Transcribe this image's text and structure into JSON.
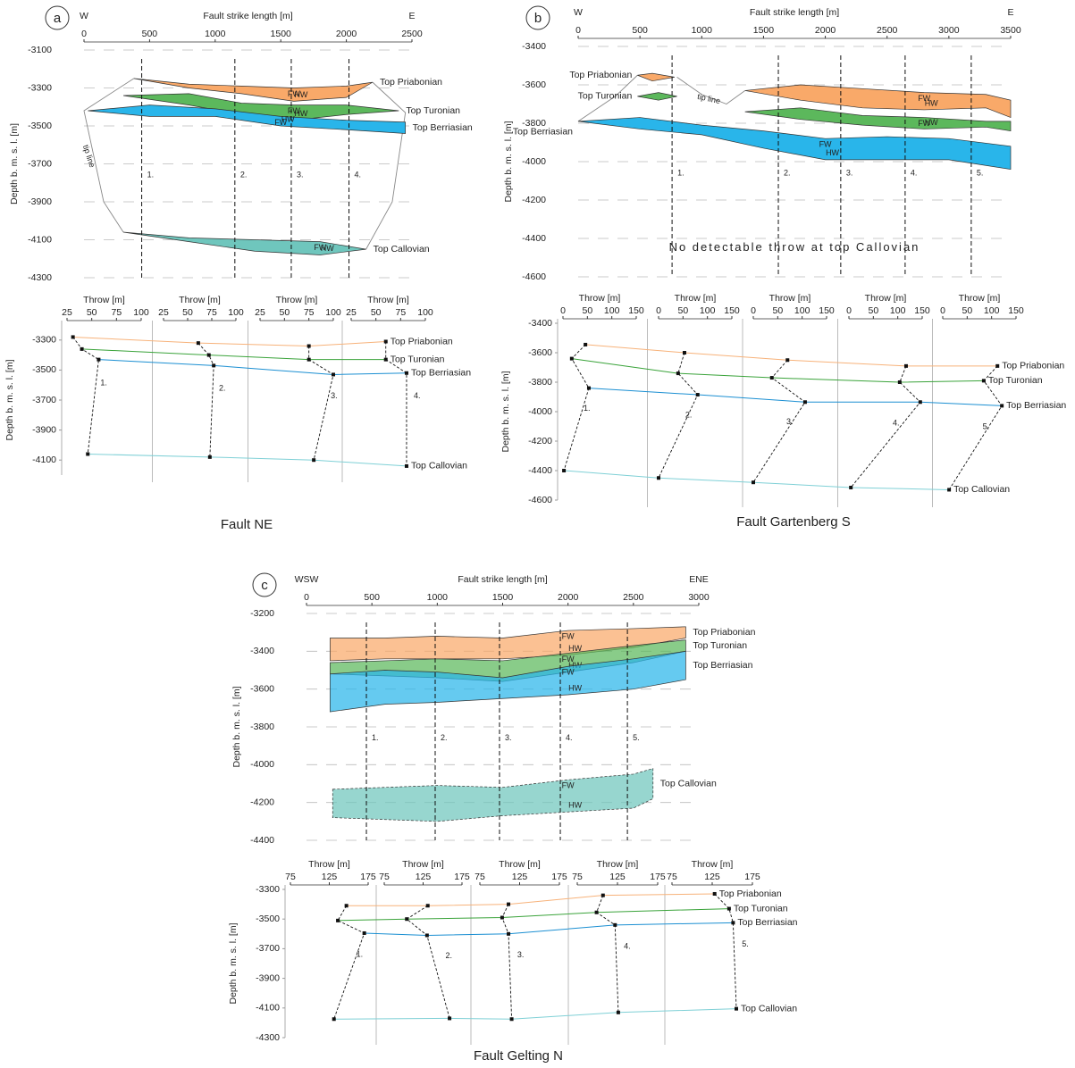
{
  "chart_data": [
    {
      "type": "fault-plane",
      "panel": "a",
      "title": "Fault strike length [m]",
      "ylabel": "Depth b. m. s. l. [m]",
      "left_label": "W",
      "right_label": "E",
      "xlim": [
        0,
        2500
      ],
      "xticks": [
        0,
        500,
        1000,
        1500,
        2000,
        2500
      ],
      "ylim": [
        -3100,
        -4300
      ],
      "yticks": [
        -3100,
        -3300,
        -3500,
        -3700,
        -3900,
        -4100,
        -4300
      ],
      "sections": {
        "x": [
          440,
          1150,
          1580,
          2020
        ],
        "labels": [
          "1.",
          "2.",
          "3.",
          "4."
        ]
      },
      "tip_line": {
        "name": "tip line",
        "x": [
          380,
          0,
          150,
          300,
          null,
          2200,
          2450,
          2350,
          2150
        ],
        "values": [
          -3250,
          -3420,
          -3900,
          -4060,
          null,
          -3270,
          -3430,
          -3900,
          -4150
        ]
      },
      "series": [
        {
          "name": "Top Priabonian",
          "color": "#f9a969",
          "upper_label": "FW",
          "lower_label": "HW",
          "x": [
            380,
            800,
            1200,
            1600,
            2000,
            2200
          ],
          "upper": [
            -3250,
            -3280,
            -3290,
            -3300,
            -3290,
            -3270
          ],
          "lower": [
            -3250,
            -3300,
            -3330,
            -3370,
            -3350,
            -3270
          ]
        },
        {
          "name": "Top Turonian",
          "color": "#5cb85c",
          "upper_label": "FW",
          "lower_label": "HW",
          "x": [
            300,
            800,
            1200,
            1600,
            2000,
            2400
          ],
          "upper": [
            -3340,
            -3330,
            -3380,
            -3390,
            -3390,
            -3420
          ],
          "lower": [
            -3340,
            -3390,
            -3440,
            -3470,
            -3440,
            -3420
          ]
        },
        {
          "name": "Top Berriasian",
          "color": "#29b5ea",
          "upper_label": "FW",
          "lower_label": "HW",
          "x": [
            30,
            500,
            1000,
            1500,
            2000,
            2450
          ],
          "upper": [
            -3420,
            -3390,
            -3410,
            -3450,
            -3470,
            -3480
          ],
          "lower": [
            -3420,
            -3450,
            -3450,
            -3500,
            -3520,
            -3540
          ]
        },
        {
          "name": "Top Callovian",
          "color": "#6fc6bd",
          "upper_label": "FW",
          "lower_label": "HW",
          "x": [
            300,
            800,
            1300,
            1800,
            2150
          ],
          "upper": [
            -4060,
            -4090,
            -4100,
            -4110,
            -4150
          ],
          "lower": [
            -4060,
            -4110,
            -4160,
            -4180,
            -4150
          ]
        }
      ]
    },
    {
      "type": "throw-depth",
      "caption": "Fault NE",
      "xlabel": "Throw [m]",
      "ylabel": "Depth b. m. s. l. [m]",
      "xlim": [
        25,
        100
      ],
      "xticks": [
        25,
        50,
        75,
        100
      ],
      "ylim": [
        -3200,
        -4200
      ],
      "yticks": [
        -3300,
        -3500,
        -3700,
        -3900,
        -4100
      ],
      "sections": [
        "1.",
        "2.",
        "3.",
        "4."
      ],
      "series": [
        {
          "name": "Top Priabonian",
          "color": "#f7b27a",
          "x": [
            31,
            61,
            75,
            60
          ],
          "values": [
            -3280,
            -3320,
            -3340,
            -3310
          ]
        },
        {
          "name": "Top Turonian",
          "color": "#3aa33a",
          "x": [
            40,
            72,
            75,
            60
          ],
          "values": [
            -3360,
            -3400,
            -3430,
            -3430
          ]
        },
        {
          "name": "Top Berriasian",
          "color": "#1b8fd2",
          "x": [
            57,
            77,
            100,
            81
          ],
          "values": [
            -3430,
            -3470,
            -3530,
            -3520
          ]
        },
        {
          "name": "Top Callovian",
          "color": "#7fd0d6",
          "x": [
            46,
            73,
            80,
            81
          ],
          "values": [
            -4060,
            -4080,
            -4100,
            -4140
          ]
        }
      ]
    },
    {
      "type": "fault-plane",
      "panel": "b",
      "title": "Fault strike length [m]",
      "ylabel": "Depth b. m. s. l. [m]",
      "left_label": "W",
      "right_label": "E",
      "xlim": [
        0,
        3500
      ],
      "xticks": [
        0,
        500,
        1000,
        1500,
        2000,
        2500,
        3000,
        3500
      ],
      "ylim": [
        -3400,
        -4600
      ],
      "yticks": [
        -3400,
        -3600,
        -3800,
        -4000,
        -4200,
        -4400,
        -4600
      ],
      "sections": {
        "x": [
          760,
          1620,
          2125,
          2646,
          3181
        ],
        "labels": [
          "1.",
          "2.",
          "3.",
          "4.",
          "5."
        ]
      },
      "tip_line": {
        "name": "tip line",
        "x": [
          1350,
          1200,
          1000,
          800,
          null,
          480,
          300,
          0
        ],
        "values": [
          -3630,
          -3700,
          -3650,
          -3560,
          null,
          -3550,
          -3660,
          -3790
        ]
      },
      "annotation": "No detectable throw at top Callovian",
      "series": [
        {
          "name": "Top Priabonian",
          "color": "#f9a969",
          "upper_label": "FW",
          "lower_label": "HW",
          "x": [
            480,
            600,
            780,
            null,
            1350,
            1800,
            2300,
            2800,
            3300,
            3500
          ],
          "upper": [
            -3550,
            -3540,
            -3560,
            null,
            -3630,
            -3600,
            -3620,
            -3640,
            -3650,
            -3680
          ],
          "lower": [
            -3550,
            -3580,
            -3560,
            null,
            -3630,
            -3680,
            -3720,
            -3730,
            -3720,
            -3770
          ]
        },
        {
          "name": "Top Turonian",
          "color": "#5cb85c",
          "upper_label": "FW",
          "lower_label": "HW",
          "x": [
            480,
            650,
            800,
            null,
            1350,
            1800,
            2300,
            2800,
            3300,
            3500
          ],
          "upper": [
            -3660,
            -3640,
            -3660,
            null,
            -3740,
            -3720,
            -3760,
            -3770,
            -3790,
            -3790
          ],
          "lower": [
            -3660,
            -3680,
            -3660,
            null,
            -3740,
            -3780,
            -3810,
            -3830,
            -3820,
            -3840
          ]
        },
        {
          "name": "Top Berriasian",
          "color": "#29b5ea",
          "upper_label": "FW",
          "lower_label": "HW",
          "x": [
            0,
            500,
            1000,
            1500,
            2000,
            2500,
            3000,
            3500
          ],
          "upper": [
            -3790,
            -3770,
            -3810,
            -3840,
            -3880,
            -3870,
            -3880,
            -3920
          ],
          "lower": [
            -3790,
            -3830,
            -3860,
            -3930,
            -3990,
            -3990,
            -3990,
            -4040
          ]
        }
      ]
    },
    {
      "type": "throw-depth",
      "caption": "Fault Gartenberg S",
      "xlabel": "Throw [m]",
      "ylabel": "Depth b. m. s. l. [m]",
      "xlim": [
        0,
        150
      ],
      "xticks": [
        0,
        50,
        100,
        150
      ],
      "ylim": [
        -3400,
        -4600
      ],
      "yticks": [
        -3400,
        -3600,
        -3800,
        -4000,
        -4200,
        -4400,
        -4600
      ],
      "sections": [
        "1.",
        "2.",
        "3.",
        "4.",
        "5."
      ],
      "series": [
        {
          "name": "Top Priabonian",
          "color": "#f7b27a",
          "x": [
            46,
            53,
            70,
            117,
            112
          ],
          "values": [
            -3545,
            -3600,
            -3650,
            -3690,
            -3690
          ]
        },
        {
          "name": "Top Turonian",
          "color": "#3aa33a",
          "x": [
            18,
            40,
            38,
            104,
            84
          ],
          "values": [
            -3640,
            -3740,
            -3770,
            -3800,
            -3790
          ]
        },
        {
          "name": "Top Berriasian",
          "color": "#1b8fd2",
          "x": [
            53,
            80,
            106,
            146,
            121
          ],
          "values": [
            -3840,
            -3885,
            -3935,
            -3935,
            -3960
          ]
        },
        {
          "name": "Top Callovian",
          "color": "#7fd0d6",
          "x": [
            2,
            0,
            0,
            4,
            13
          ],
          "values": [
            -4400,
            -4450,
            -4480,
            -4515,
            -4530
          ]
        }
      ]
    },
    {
      "type": "fault-plane",
      "panel": "c",
      "title": "Fault strike length [m]",
      "ylabel": "Depth b. m. s. l. [m]",
      "left_label": "WSW",
      "right_label": "ENE",
      "xlim": [
        0,
        3000
      ],
      "xticks": [
        0,
        500,
        1000,
        1500,
        2000,
        2500,
        3000
      ],
      "ylim": [
        -3200,
        -4400
      ],
      "yticks": [
        -3200,
        -3400,
        -3600,
        -3800,
        -4000,
        -4200,
        -4400
      ],
      "sections": {
        "x": [
          458,
          984,
          1476,
          1941,
          2454
        ],
        "labels": [
          "1.",
          "2.",
          "3.",
          "4.",
          "5."
        ]
      },
      "series": [
        {
          "name": "Top Priabonian",
          "color": "#f9a969",
          "upper_label": "FW",
          "lower_label": "HW",
          "x": [
            180,
            600,
            1000,
            1500,
            2000,
            2500,
            2900
          ],
          "upper": [
            -3330,
            -3330,
            -3320,
            -3330,
            -3290,
            -3280,
            -3270
          ],
          "lower": [
            -3450,
            -3440,
            -3440,
            -3440,
            -3420,
            -3380,
            -3330
          ]
        },
        {
          "name": "Top Turonian",
          "color": "#5cb85c",
          "upper_label": "FW",
          "lower_label": "HW",
          "x": [
            180,
            600,
            1000,
            1500,
            2000,
            2500,
            2900
          ],
          "upper": [
            -3460,
            -3450,
            -3440,
            -3450,
            -3410,
            -3370,
            -3340
          ],
          "lower": [
            -3520,
            -3530,
            -3540,
            -3560,
            -3510,
            -3460,
            -3400
          ]
        },
        {
          "name": "Top Berriasian",
          "color": "#29b5ea",
          "upper_label": "FW",
          "lower_label": "HW",
          "x": [
            180,
            600,
            1000,
            1500,
            2000,
            2500,
            2900
          ],
          "upper": [
            -3520,
            -3500,
            -3510,
            -3540,
            -3480,
            -3440,
            -3400
          ],
          "lower": [
            -3720,
            -3680,
            -3670,
            -3650,
            -3630,
            -3600,
            -3550
          ]
        },
        {
          "name": "Top Callovian",
          "color": "#6fc6bd",
          "upper_label": "FW",
          "lower_label": "HW",
          "x": [
            200,
            600,
            1000,
            1500,
            2000,
            2500,
            2650
          ],
          "upper": [
            -4130,
            -4120,
            -4110,
            -4120,
            -4080,
            -4050,
            -4020
          ],
          "lower": [
            -4280,
            -4290,
            -4300,
            -4270,
            -4250,
            -4230,
            -4180
          ]
        }
      ]
    },
    {
      "type": "throw-depth",
      "caption": "Fault Gelting N",
      "xlabel": "Throw [m]",
      "ylabel": "Depth b. m. s. l. [m]",
      "xlim": [
        75,
        175
      ],
      "xticks": [
        75,
        125,
        175
      ],
      "ylim": [
        -3300,
        -4300
      ],
      "yticks": [
        -3300,
        -3500,
        -3700,
        -3900,
        -4100,
        -4300
      ],
      "sections": [
        "1.",
        "2.",
        "3.",
        "4.",
        "5."
      ],
      "series": [
        {
          "name": "Top Priabonian",
          "color": "#f7b27a",
          "x": [
            147,
            131,
            111,
            107,
            128
          ],
          "values": [
            -3410,
            -3410,
            -3400,
            -3340,
            -3330
          ]
        },
        {
          "name": "Top Turonian",
          "color": "#3aa33a",
          "x": [
            136,
            104,
            103,
            99,
            146
          ],
          "values": [
            -3510,
            -3500,
            -3490,
            -3455,
            -3430
          ]
        },
        {
          "name": "Top Berriasian",
          "color": "#1b8fd2",
          "x": [
            170,
            130,
            111,
            122,
            151
          ],
          "values": [
            -3595,
            -3610,
            -3600,
            -3540,
            -3525
          ]
        },
        {
          "name": "Top Callovian",
          "color": "#7fd0d6",
          "x": [
            131,
            159,
            115,
            126,
            155
          ],
          "values": [
            -4175,
            -4170,
            -4175,
            -4130,
            -4105
          ]
        }
      ]
    }
  ]
}
